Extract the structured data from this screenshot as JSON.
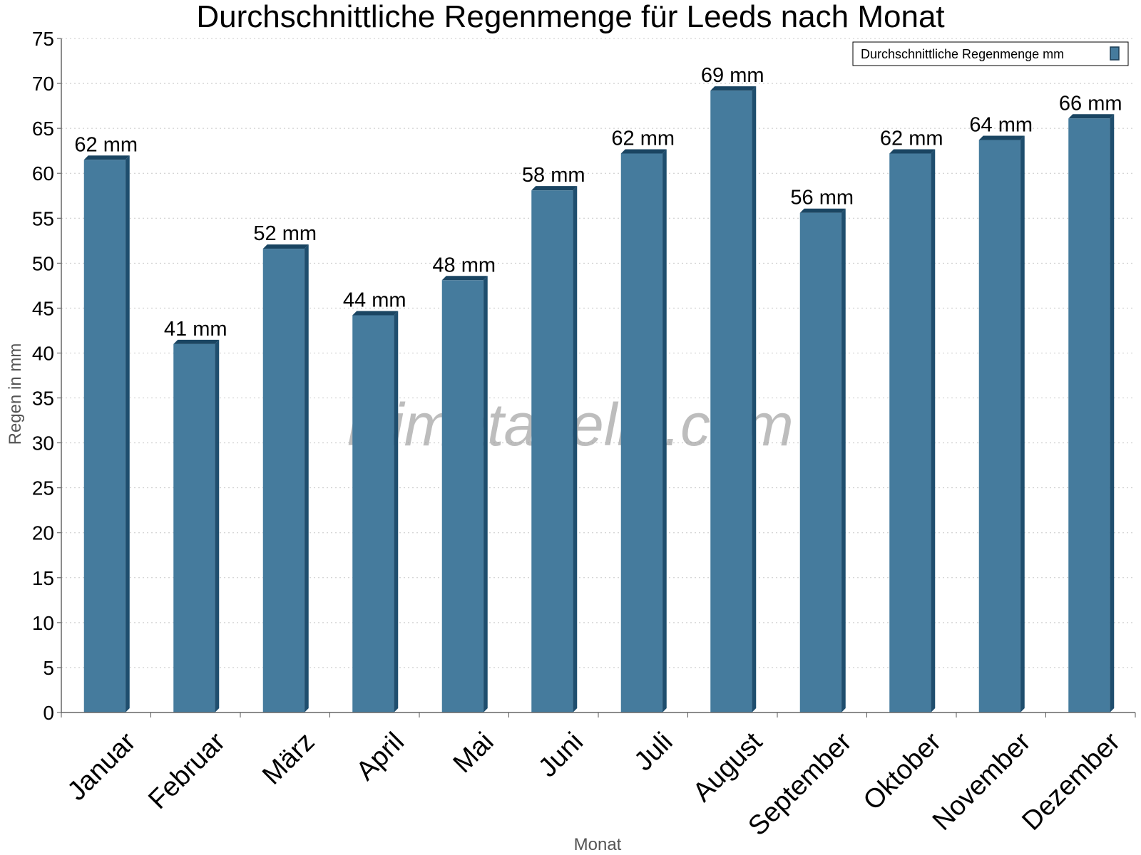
{
  "chart_data": {
    "type": "bar",
    "title": "Durchschnittliche Regenmenge für Leeds nach Monat",
    "xlabel": "Monat",
    "ylabel": "Regen in mm",
    "ylim": [
      0,
      75
    ],
    "yticks": [
      0,
      5,
      10,
      15,
      20,
      25,
      30,
      35,
      40,
      45,
      50,
      55,
      60,
      65,
      70,
      75
    ],
    "grid": true,
    "legend_position": "top-right",
    "categories": [
      "Januar",
      "Februar",
      "März",
      "April",
      "Mai",
      "Juni",
      "Juli",
      "August",
      "September",
      "Oktober",
      "November",
      "Dezember"
    ],
    "series": [
      {
        "name": "Durchschnittliche Regenmenge mm",
        "color": "#457b9d",
        "values": [
          61.5,
          41,
          51.6,
          44.2,
          48.1,
          58.1,
          62.2,
          69.2,
          55.6,
          62.2,
          63.7,
          66.1
        ],
        "labels": [
          "62 mm",
          "41 mm",
          "52 mm",
          "44 mm",
          "48 mm",
          "58 mm",
          "62 mm",
          "69 mm",
          "56 mm",
          "62 mm",
          "64 mm",
          "66 mm"
        ]
      }
    ]
  },
  "watermark": "klimatabelle.com"
}
